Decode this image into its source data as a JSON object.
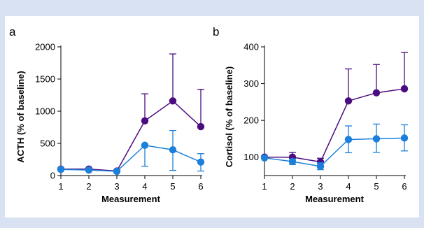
{
  "background_color": "#d9e2f3",
  "chart_data": [
    {
      "type": "line",
      "panel_label": "a",
      "x": [
        1,
        2,
        3,
        4,
        5,
        6
      ],
      "xlabel": "Measurement",
      "ylabel": "ACTH (% of baseline)",
      "xlim": [
        1,
        6
      ],
      "ylim": [
        0,
        2000
      ],
      "yticks": [
        0,
        500,
        1000,
        1500,
        2000
      ],
      "grid": false,
      "series": [
        {
          "color": "#4b0c7f",
          "values": [
            100,
            100,
            70,
            850,
            1160,
            760
          ],
          "error_upper": [
            100,
            110,
            75,
            1270,
            1890,
            1340
          ],
          "error_lower": [
            100,
            100,
            70,
            850,
            1160,
            760
          ]
        },
        {
          "color": "#1b7fdb",
          "values": [
            95,
            85,
            65,
            470,
            400,
            210
          ],
          "error_upper": [
            95,
            95,
            70,
            470,
            700,
            340
          ],
          "error_lower": [
            95,
            75,
            60,
            145,
            80,
            70
          ]
        }
      ]
    },
    {
      "type": "line",
      "panel_label": "b",
      "x": [
        1,
        2,
        3,
        4,
        5,
        6
      ],
      "xlabel": "Measurement",
      "ylabel": "Cortisol (% of baseline)",
      "xlim": [
        1,
        6
      ],
      "ylim": [
        50,
        400
      ],
      "yticks": [
        100,
        200,
        300,
        400
      ],
      "grid": false,
      "series": [
        {
          "color": "#4b0c7f",
          "values": [
            100,
            100,
            87,
            253,
            275,
            286
          ],
          "error_upper": [
            100,
            113,
            97,
            340,
            352,
            385
          ],
          "error_lower": [
            100,
            100,
            87,
            253,
            275,
            286
          ]
        },
        {
          "color": "#1b7fdb",
          "values": [
            98,
            88,
            75,
            148,
            150,
            152
          ],
          "error_upper": [
            98,
            95,
            85,
            185,
            190,
            188
          ],
          "error_lower": [
            98,
            80,
            66,
            112,
            113,
            117
          ]
        }
      ]
    }
  ]
}
